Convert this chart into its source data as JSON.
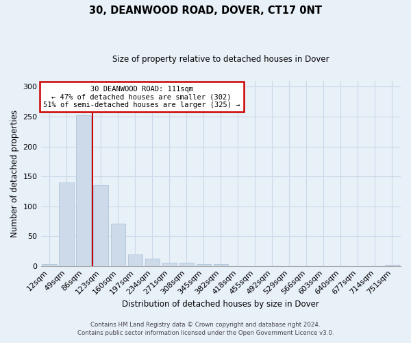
{
  "title": "30, DEANWOOD ROAD, DOVER, CT17 0NT",
  "subtitle": "Size of property relative to detached houses in Dover",
  "xlabel": "Distribution of detached houses by size in Dover",
  "ylabel": "Number of detached properties",
  "bar_labels": [
    "12sqm",
    "49sqm",
    "86sqm",
    "123sqm",
    "160sqm",
    "197sqm",
    "234sqm",
    "271sqm",
    "308sqm",
    "345sqm",
    "382sqm",
    "418sqm",
    "455sqm",
    "492sqm",
    "529sqm",
    "566sqm",
    "603sqm",
    "640sqm",
    "677sqm",
    "714sqm",
    "751sqm"
  ],
  "bar_values": [
    3,
    140,
    252,
    135,
    71,
    19,
    12,
    5,
    5,
    3,
    3,
    0,
    0,
    0,
    0,
    0,
    0,
    0,
    0,
    0,
    2
  ],
  "bar_color": "#ccdaea",
  "bar_edge_color": "#a8c0d4",
  "grid_color": "#ccd8e8",
  "bg_color": "#e8f0f8",
  "vline_color": "#cc0000",
  "annotation_text": "30 DEANWOOD ROAD: 111sqm\n← 47% of detached houses are smaller (302)\n51% of semi-detached houses are larger (325) →",
  "annotation_box_color": "#cc0000",
  "annotation_box_fill": "#ffffff",
  "ylim": [
    0,
    310
  ],
  "yticks": [
    0,
    50,
    100,
    150,
    200,
    250,
    300
  ],
  "footer1": "Contains HM Land Registry data © Crown copyright and database right 2024.",
  "footer2": "Contains public sector information licensed under the Open Government Licence v3.0."
}
